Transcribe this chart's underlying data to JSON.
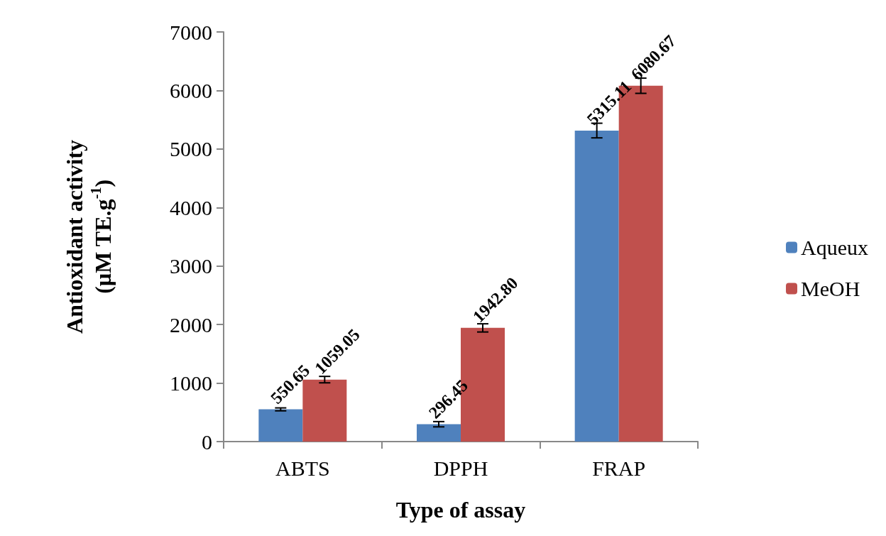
{
  "chart_data": {
    "type": "bar",
    "xlabel": "Type of assay",
    "ylabel": "Antioxidant activity\n(µM TE.g$^{-1}$)",
    "categories": [
      "ABTS",
      "DPPH",
      "FRAP"
    ],
    "series": [
      {
        "name": "Aqueux",
        "color": "#4f81bd",
        "values": [
          550.65,
          296.45,
          5315.11
        ],
        "value_labels": [
          "550.65",
          "296.45",
          "5315.11"
        ],
        "errors": [
          25,
          45,
          125
        ]
      },
      {
        "name": "MeOH",
        "color": "#c0504d",
        "values": [
          1059.05,
          1942.8,
          6080.67
        ],
        "value_labels": [
          "1059.05",
          "1942.80",
          "6080.67"
        ],
        "errors": [
          55,
          70,
          130
        ]
      }
    ],
    "ylim": [
      0,
      7000
    ],
    "yticks": [
      0,
      1000,
      2000,
      3000,
      4000,
      5000,
      6000,
      7000
    ],
    "grid": false,
    "legend": "right"
  }
}
